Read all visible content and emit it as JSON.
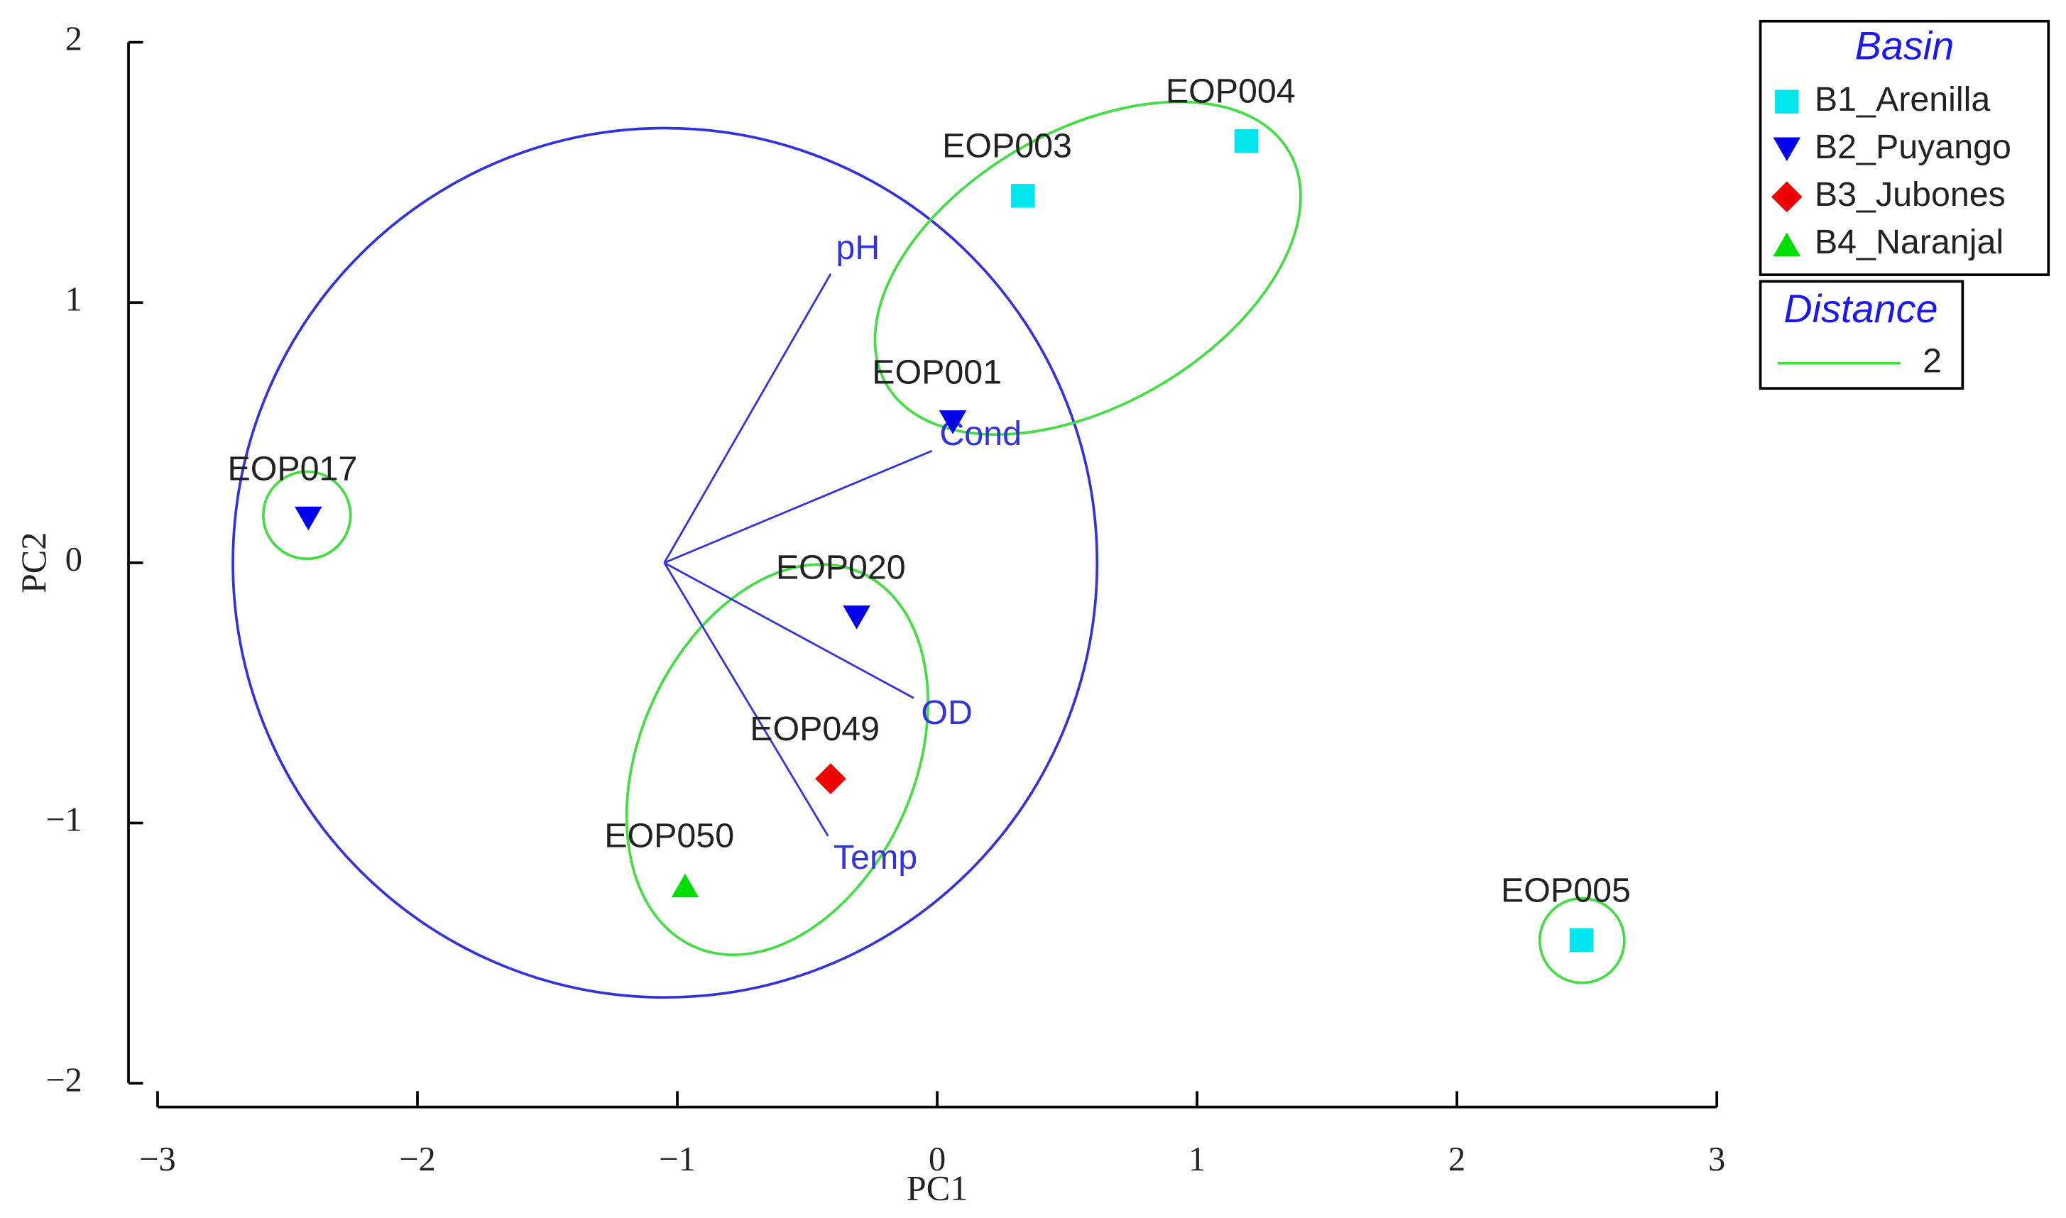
{
  "chart_data": {
    "type": "biplot",
    "x_label": "PC1",
    "y_label": "PC2",
    "xlim": [
      -3,
      3
    ],
    "ylim": [
      -2,
      2
    ],
    "xticks": [
      {
        "value": -3,
        "label": "−3"
      },
      {
        "value": -2,
        "label": "−2"
      },
      {
        "value": -1,
        "label": "−1"
      },
      0,
      1,
      2,
      3
    ],
    "yticks": [
      {
        "value": -2,
        "label": "−2"
      },
      {
        "value": -1,
        "label": "−1"
      },
      0,
      1,
      2
    ],
    "legend_title": "Basin",
    "legend_position": "upper right",
    "series": [
      {
        "name": "B1_Arenilla",
        "color": "#00e5ee",
        "marker": "square",
        "labels": [
          "EOP004",
          "EOP003",
          "EOP005"
        ],
        "x": [
          1.19,
          0.33,
          2.48
        ],
        "y": [
          1.62,
          1.41,
          -1.45
        ]
      },
      {
        "name": "B2_Puyango",
        "color": "#0000ee",
        "marker": "triangle-down",
        "labels": [
          "EOP001",
          "EOP017",
          "EOP020"
        ],
        "x": [
          0.06,
          -2.42,
          -0.31
        ],
        "y": [
          0.54,
          0.17,
          -0.21
        ]
      },
      {
        "name": "B3_Jubones",
        "color": "#ee0000",
        "marker": "diamond",
        "labels": [
          "EOP049"
        ],
        "x": [
          -0.41
        ],
        "y": [
          -0.83
        ]
      },
      {
        "name": "B4_Naranjal",
        "color": "#00dd00",
        "marker": "triangle-up",
        "labels": [
          "EOP050"
        ],
        "x": [
          -0.97
        ],
        "y": [
          -1.24
        ]
      }
    ],
    "vector_color": "#3333dd",
    "vector_origin": {
      "x": -1.05,
      "y": 0
    },
    "vectors": [
      {
        "name": "pH",
        "x": -0.41,
        "y": 1.11
      },
      {
        "name": "Cond",
        "x": -0.02,
        "y": 0.43
      },
      {
        "name": "OD",
        "x": -0.09,
        "y": -0.52
      },
      {
        "name": "Temp",
        "x": -0.42,
        "y": -1.05
      }
    ],
    "distance_legend": {
      "title": "Distance",
      "label": "2",
      "color": "#44dd44"
    }
  }
}
